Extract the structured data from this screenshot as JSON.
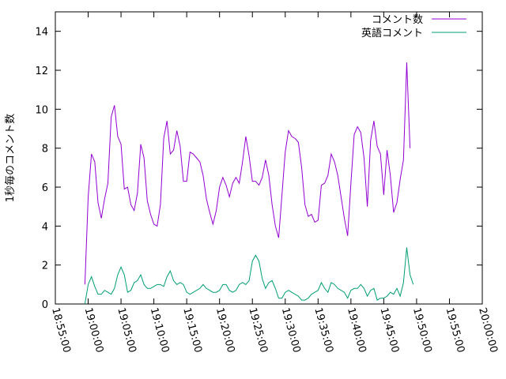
{
  "chart_data": {
    "type": "line",
    "title": "",
    "xlabel": "",
    "ylabel": "1秒毎のコメント数",
    "xlim": [
      "18:55:00",
      "20:00:00"
    ],
    "ylim": [
      0,
      15
    ],
    "x_ticks": [
      "18:55:00",
      "19:00:00",
      "19:05:00",
      "19:10:00",
      "19:15:00",
      "19:20:00",
      "19:25:00",
      "19:30:00",
      "19:35:00",
      "19:40:00",
      "19:45:00",
      "19:50:00",
      "19:55:00",
      "20:00:00"
    ],
    "y_ticks": [
      "0",
      "2",
      "4",
      "6",
      "8",
      "10",
      "12",
      "14"
    ],
    "grid": false,
    "legend_position": "top-right",
    "x_step_seconds": 30,
    "series": [
      {
        "name": "コメント数",
        "color": "#9400d3",
        "x_start": "18:59:30",
        "values": [
          1.0,
          5.5,
          7.7,
          7.3,
          5.2,
          4.4,
          5.4,
          6.2,
          9.6,
          10.2,
          8.6,
          8.2,
          5.9,
          6.0,
          5.1,
          4.8,
          5.7,
          8.2,
          7.5,
          5.3,
          4.6,
          4.1,
          4.0,
          5.1,
          8.5,
          9.4,
          7.7,
          7.9,
          8.9,
          8.1,
          6.3,
          6.3,
          7.8,
          7.7,
          7.5,
          7.3,
          6.6,
          5.4,
          4.7,
          4.1,
          4.8,
          6.0,
          6.5,
          6.1,
          5.5,
          6.2,
          6.5,
          6.2,
          7.3,
          8.6,
          7.6,
          6.3,
          6.3,
          6.1,
          6.5,
          7.4,
          6.6,
          5.1,
          4.0,
          3.4,
          5.6,
          7.8,
          8.9,
          8.6,
          8.5,
          8.3,
          7.0,
          5.1,
          4.5,
          4.6,
          4.2,
          4.3,
          6.1,
          6.2,
          6.6,
          7.7,
          7.3,
          6.6,
          5.5,
          4.4,
          3.5,
          6.2,
          8.7,
          9.1,
          8.8,
          7.5,
          5.0,
          8.4,
          9.4,
          8.1,
          7.7,
          5.6,
          7.9,
          6.6,
          4.7,
          5.2,
          6.4,
          7.4,
          12.4,
          8.0
        ]
      },
      {
        "name": "英語コメント",
        "color": "#009e73",
        "x_start": "18:59:30",
        "values": [
          0.0,
          1.0,
          1.4,
          0.9,
          0.5,
          0.5,
          0.7,
          0.6,
          0.5,
          0.8,
          1.5,
          1.9,
          1.5,
          0.6,
          0.7,
          1.1,
          1.2,
          1.5,
          1.0,
          0.8,
          0.8,
          0.9,
          1.0,
          1.0,
          0.9,
          1.4,
          1.7,
          1.2,
          1.0,
          1.1,
          1.0,
          0.6,
          0.5,
          0.6,
          0.7,
          0.8,
          1.0,
          0.8,
          0.7,
          0.6,
          0.6,
          0.7,
          1.0,
          1.0,
          0.7,
          0.6,
          0.7,
          1.0,
          1.1,
          1.0,
          1.2,
          2.2,
          2.5,
          2.2,
          1.3,
          0.8,
          1.1,
          1.2,
          0.8,
          0.3,
          0.3,
          0.6,
          0.7,
          0.6,
          0.5,
          0.4,
          0.2,
          0.2,
          0.3,
          0.5,
          0.6,
          0.7,
          1.1,
          0.8,
          0.6,
          1.1,
          1.0,
          0.8,
          0.7,
          0.6,
          0.3,
          0.7,
          0.8,
          0.8,
          1.0,
          0.8,
          0.4,
          0.7,
          0.8,
          0.2,
          0.3,
          0.3,
          0.4,
          0.6,
          0.5,
          0.8,
          0.4,
          1.1,
          2.9,
          1.5,
          1.0
        ]
      }
    ]
  }
}
